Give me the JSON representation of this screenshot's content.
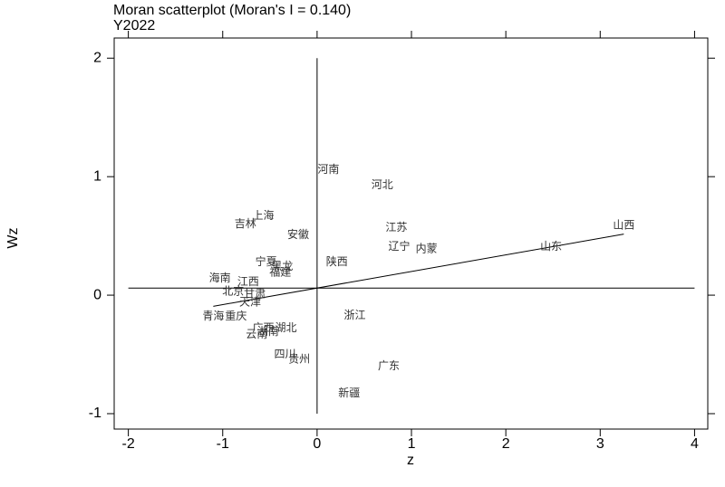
{
  "chart_data": {
    "type": "scatter",
    "title": "Moran scatterplot (Moran's I = 0.140)",
    "subtitle": "Y2022",
    "x_label": "z",
    "y_label": "Wz",
    "labels": [
      "河南",
      "河北",
      "上海",
      "吉林",
      "安徽",
      "江苏",
      "辽宁",
      "内蒙",
      "山东",
      "山西",
      "陕西",
      "宁夏",
      "黑龙",
      "福建",
      "海南",
      "江西",
      "北京",
      "甘肃",
      "天津",
      "青海",
      "重庆",
      "浙江",
      "广西",
      "湖北",
      "云南",
      "湖南",
      "四川",
      "贵州",
      "广东",
      "新疆"
    ],
    "x": [
      0.12,
      0.69,
      -0.57,
      -0.76,
      -0.2,
      0.84,
      0.87,
      1.16,
      2.48,
      3.25,
      0.21,
      -0.54,
      -0.37,
      -0.39,
      -1.03,
      -0.73,
      -0.89,
      -0.66,
      -0.71,
      -1.1,
      -0.86,
      0.4,
      -0.57,
      -0.33,
      -0.64,
      -0.52,
      -0.34,
      -0.19,
      0.76,
      0.34
    ],
    "values": [
      1.06,
      0.93,
      0.67,
      0.6,
      0.51,
      0.57,
      0.41,
      0.39,
      0.41,
      0.59,
      0.28,
      0.28,
      0.24,
      0.19,
      0.14,
      0.11,
      0.03,
      0.01,
      -0.06,
      -0.18,
      -0.18,
      -0.17,
      -0.28,
      -0.28,
      -0.33,
      -0.31,
      -0.5,
      -0.54,
      -0.6,
      -0.83
    ],
    "label_color": "#333333",
    "fit": {
      "xlim": [
        -1.1,
        3.25
      ],
      "intercept": 0.06,
      "slope": 0.14
    },
    "hline": 0.06,
    "vline": 0,
    "xlim": [
      -2.15,
      4.14
    ],
    "ylim": [
      -1.13,
      2.17
    ],
    "xticks": [
      -2,
      -1,
      0,
      1,
      2,
      3,
      4
    ],
    "yticks": [
      -1,
      0,
      1,
      2
    ]
  }
}
